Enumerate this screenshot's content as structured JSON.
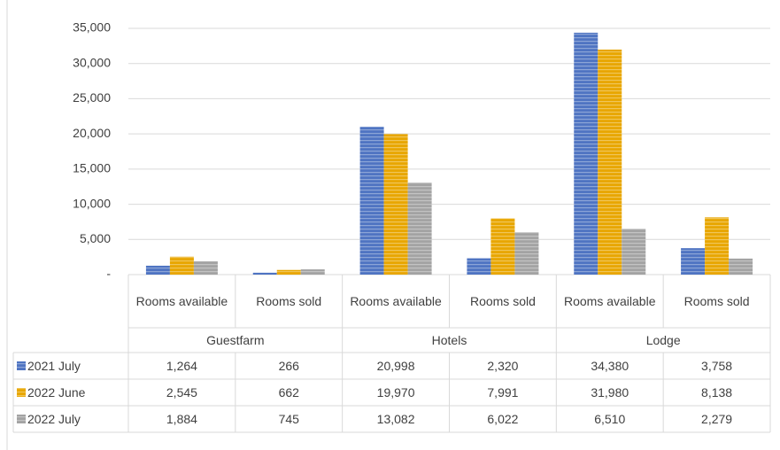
{
  "chart_data": {
    "type": "bar",
    "groups": [
      "Guestfarm",
      "Hotels",
      "Lodge"
    ],
    "categories": [
      "Rooms available",
      "Rooms sold",
      "Rooms available",
      "Rooms sold",
      "Rooms available",
      "Rooms sold"
    ],
    "series": [
      {
        "name": "2021 July",
        "color": "#4f74c2",
        "values": [
          1264,
          266,
          20998,
          2320,
          34380,
          3758
        ],
        "value_labels": [
          "1,264",
          "266",
          "20,998",
          "2,320",
          "34,380",
          "3,758"
        ]
      },
      {
        "name": "2022 June",
        "color": "#e8a600",
        "values": [
          2545,
          662,
          19970,
          7991,
          31980,
          8138
        ],
        "value_labels": [
          "2,545",
          "662",
          "19,970",
          "7,991",
          "31,980",
          "8,138"
        ]
      },
      {
        "name": "2022 July",
        "color": "#a3a3a3",
        "values": [
          1884,
          745,
          13082,
          6022,
          6510,
          2279
        ],
        "value_labels": [
          "1,884",
          "745",
          "13,082",
          "6,022",
          "6,510",
          "2,279"
        ]
      }
    ],
    "ylim": [
      0,
      35000
    ],
    "yticks": [
      {
        "value": 0,
        "label": "-"
      },
      {
        "value": 5000,
        "label": "5,000"
      },
      {
        "value": 10000,
        "label": "10,000"
      },
      {
        "value": 15000,
        "label": "15,000"
      },
      {
        "value": 20000,
        "label": "20,000"
      },
      {
        "value": 25000,
        "label": "25,000"
      },
      {
        "value": 30000,
        "label": "30,000"
      },
      {
        "value": 35000,
        "label": "35,000"
      }
    ],
    "grid": true
  }
}
